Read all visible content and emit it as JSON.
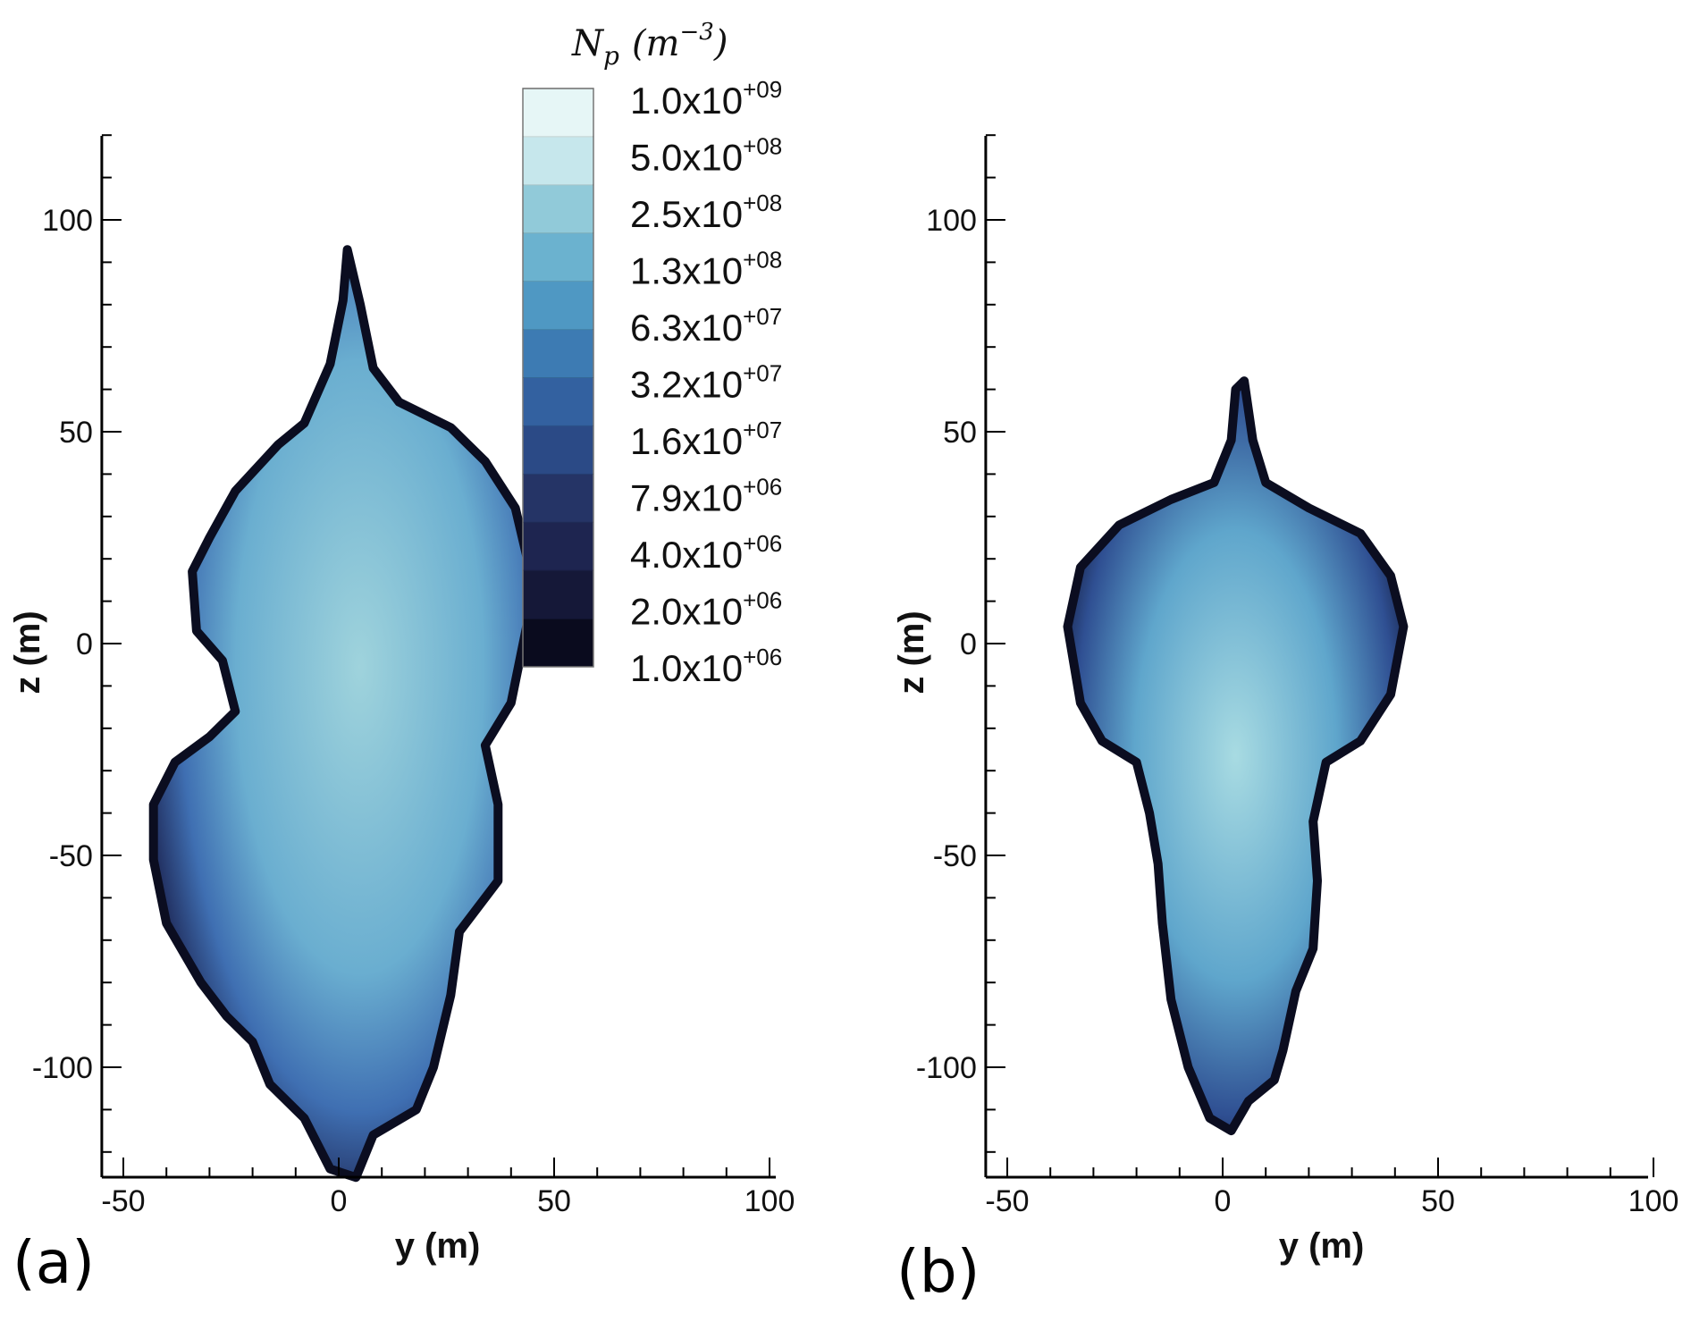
{
  "chart_data": [
    {
      "type": "heatmap",
      "panel_label": "(a)",
      "xlabel": "y (m)",
      "ylabel": "z (m)",
      "xlim": [
        -55,
        105
      ],
      "ylim": [
        -125,
        120
      ],
      "x_ticks": [
        -50,
        0,
        50,
        100
      ],
      "y_ticks": [
        -100,
        -50,
        0,
        50,
        100
      ],
      "x_tick_labels": [
        "-50",
        "0",
        "50",
        "100"
      ],
      "y_tick_labels": [
        "-100",
        "-50",
        "0",
        "50",
        "100"
      ],
      "plume_outline": [
        [
          2,
          93
        ],
        [
          5,
          80
        ],
        [
          8,
          65
        ],
        [
          14,
          57
        ],
        [
          26,
          51
        ],
        [
          34,
          43
        ],
        [
          41,
          32
        ],
        [
          44,
          19
        ],
        [
          44,
          6
        ],
        [
          40,
          -14
        ],
        [
          34,
          -24
        ],
        [
          37,
          -38
        ],
        [
          37,
          -56
        ],
        [
          28,
          -68
        ],
        [
          26,
          -83
        ],
        [
          22,
          -100
        ],
        [
          18,
          -110
        ],
        [
          8,
          -116
        ],
        [
          4,
          -126
        ],
        [
          -2,
          -124
        ],
        [
          -8,
          -112
        ],
        [
          -16,
          -104
        ],
        [
          -20,
          -94
        ],
        [
          -26,
          -88
        ],
        [
          -32,
          -80
        ],
        [
          -40,
          -66
        ],
        [
          -43,
          -51
        ],
        [
          -43,
          -38
        ],
        [
          -38,
          -28
        ],
        [
          -30,
          -22
        ],
        [
          -24,
          -16
        ],
        [
          -27,
          -4
        ],
        [
          -33,
          3
        ],
        [
          -34,
          17
        ],
        [
          -30,
          25
        ],
        [
          -24,
          36
        ],
        [
          -14,
          47
        ],
        [
          -8,
          52
        ],
        [
          -2,
          66
        ],
        [
          1,
          81
        ]
      ]
    },
    {
      "type": "heatmap",
      "panel_label": "(b)",
      "xlabel": "y (m)",
      "ylabel": "z (m)",
      "xlim": [
        -55,
        105
      ],
      "ylim": [
        -125,
        120
      ],
      "x_ticks": [
        -50,
        0,
        50,
        100
      ],
      "y_ticks": [
        -100,
        -50,
        0,
        50,
        100
      ],
      "x_tick_labels": [
        "-50",
        "0",
        "50",
        "100"
      ],
      "y_tick_labels": [
        "-100",
        "-50",
        "0",
        "50",
        "100"
      ],
      "plume_outline": [
        [
          5,
          62
        ],
        [
          7,
          48
        ],
        [
          10,
          38
        ],
        [
          20,
          32
        ],
        [
          32,
          26
        ],
        [
          39,
          16
        ],
        [
          42,
          4
        ],
        [
          39,
          -12
        ],
        [
          32,
          -23
        ],
        [
          24,
          -28
        ],
        [
          21,
          -42
        ],
        [
          22,
          -56
        ],
        [
          21,
          -72
        ],
        [
          17,
          -82
        ],
        [
          14,
          -96
        ],
        [
          12,
          -103
        ],
        [
          6,
          -108
        ],
        [
          2,
          -115
        ],
        [
          -3,
          -112
        ],
        [
          -8,
          -100
        ],
        [
          -12,
          -84
        ],
        [
          -14,
          -66
        ],
        [
          -15,
          -52
        ],
        [
          -17,
          -40
        ],
        [
          -20,
          -28
        ],
        [
          -28,
          -23
        ],
        [
          -33,
          -14
        ],
        [
          -36,
          4
        ],
        [
          -33,
          18
        ],
        [
          -24,
          28
        ],
        [
          -12,
          34
        ],
        [
          -2,
          38
        ],
        [
          2,
          48
        ],
        [
          3,
          60
        ]
      ]
    }
  ],
  "colorbar": {
    "title": "N",
    "title_sub": "p",
    "title_units_base": "(m",
    "title_units_exp": "−3",
    "title_units_close": ")",
    "colors": [
      "#0a0b1e",
      "#151838",
      "#1e2550",
      "#253466",
      "#2b4a86",
      "#3361a0",
      "#3d7bb3",
      "#4f98c3",
      "#6bb2cf",
      "#91cad9",
      "#c6e7ec",
      "#e6f6f6"
    ],
    "levels": [
      {
        "mantissa": "1.0x10",
        "exponent": "+09"
      },
      {
        "mantissa": "5.0x10",
        "exponent": "+08"
      },
      {
        "mantissa": "2.5x10",
        "exponent": "+08"
      },
      {
        "mantissa": "1.3x10",
        "exponent": "+08"
      },
      {
        "mantissa": "6.3x10",
        "exponent": "+07"
      },
      {
        "mantissa": "3.2x10",
        "exponent": "+07"
      },
      {
        "mantissa": "1.6x10",
        "exponent": "+07"
      },
      {
        "mantissa": "7.9x10",
        "exponent": "+06"
      },
      {
        "mantissa": "4.0x10",
        "exponent": "+06"
      },
      {
        "mantissa": "2.0x10",
        "exponent": "+06"
      },
      {
        "mantissa": "1.0x10",
        "exponent": "+06"
      }
    ]
  }
}
